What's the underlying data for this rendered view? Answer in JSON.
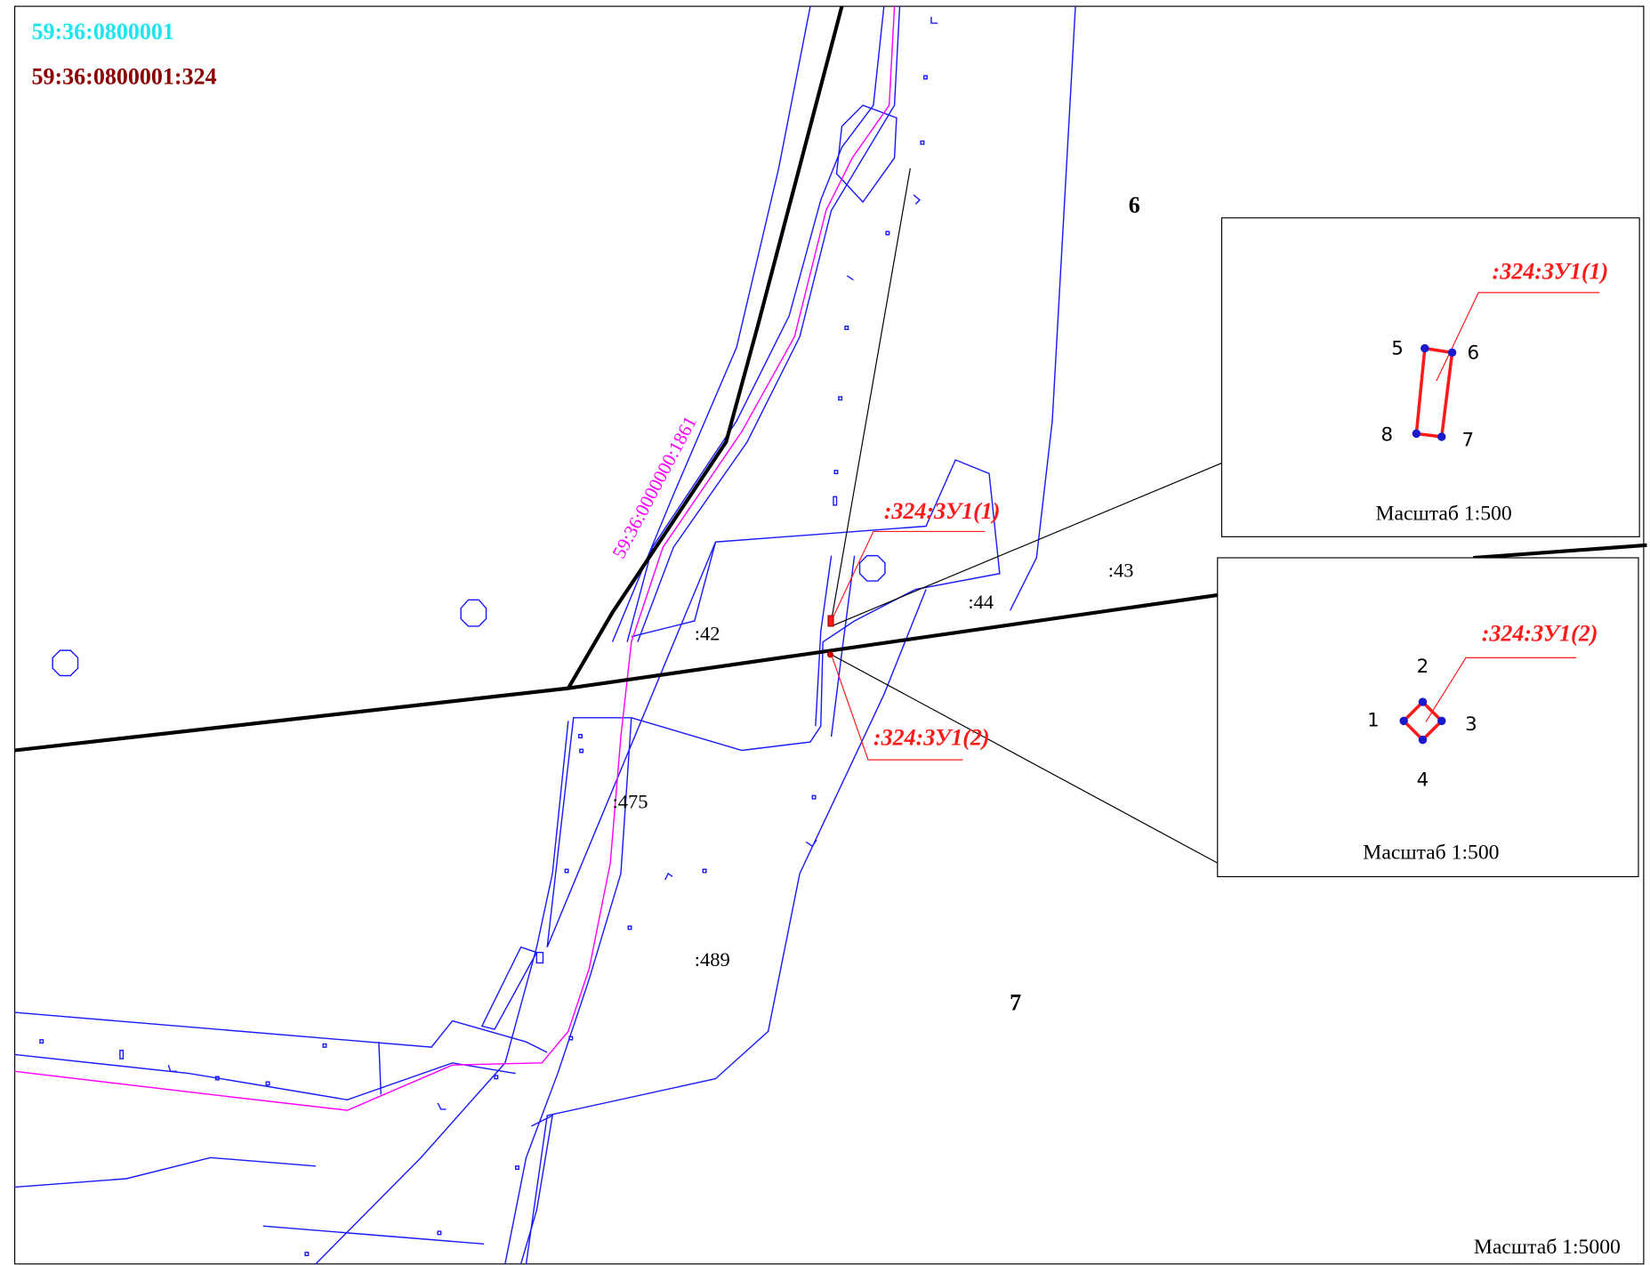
{
  "header": {
    "block": "59:36:0800001",
    "parcel": "59:36:0800001:324"
  },
  "zones": [
    "6",
    "7"
  ],
  "parcels": [
    ":42",
    ":43",
    ":44",
    ":475",
    ":489"
  ],
  "road_label": "59:36:0000000:1861",
  "callouts": [
    ":324:ЗУ1(1)",
    ":324:ЗУ1(2)"
  ],
  "insets": [
    {
      "label": ":324:ЗУ1(1)",
      "points": [
        "5",
        "6",
        "7",
        "8"
      ],
      "scale": "Масштаб 1:500"
    },
    {
      "label": ":324:ЗУ1(2)",
      "points": [
        "1",
        "2",
        "3",
        "4"
      ],
      "scale": "Масштаб 1:500"
    }
  ],
  "scale": "Масштаб 1:5000"
}
